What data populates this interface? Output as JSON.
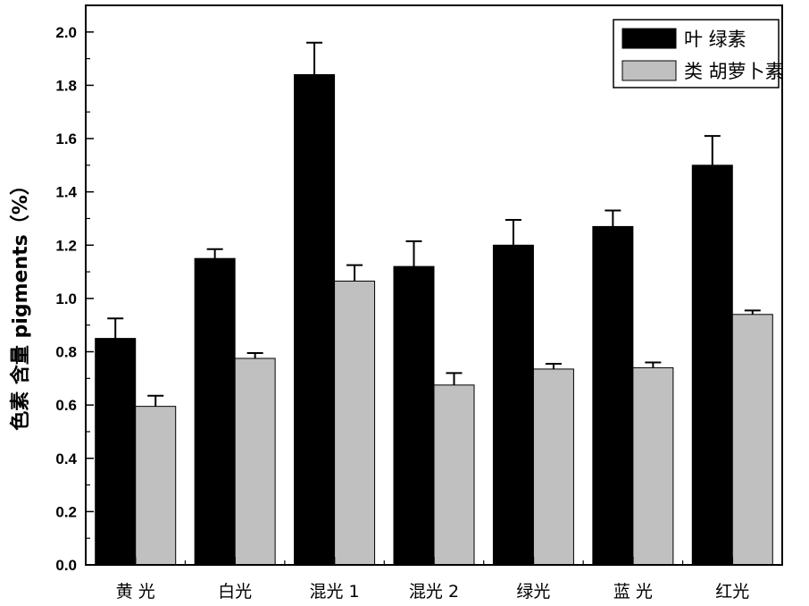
{
  "chart_data": {
    "type": "bar",
    "categories": [
      "黄 光",
      "白光",
      "混光 1",
      "混光 2",
      "绿光",
      "蓝 光",
      "红光"
    ],
    "series": [
      {
        "name": "叶 绿素",
        "color": "#000000",
        "values": [
          0.85,
          1.15,
          1.84,
          1.12,
          1.2,
          1.27,
          1.5
        ],
        "errors": [
          0.075,
          0.035,
          0.12,
          0.095,
          0.095,
          0.06,
          0.11
        ]
      },
      {
        "name": "类 胡萝卜素",
        "color": "#c0c0c0",
        "values": [
          0.595,
          0.775,
          1.065,
          0.675,
          0.735,
          0.74,
          0.94
        ],
        "errors": [
          0.04,
          0.02,
          0.06,
          0.045,
          0.02,
          0.02,
          0.015
        ]
      }
    ],
    "ylabel": "色素 含量 pigments（%）",
    "xlabel": "",
    "ylim": [
      0.0,
      2.1
    ],
    "yticks": [
      "0.0",
      "0.2",
      "0.4",
      "0.6",
      "0.8",
      "1.0",
      "1.2",
      "1.4",
      "1.6",
      "1.8",
      "2.0"
    ],
    "legend_position": "top-right",
    "grid": false
  }
}
